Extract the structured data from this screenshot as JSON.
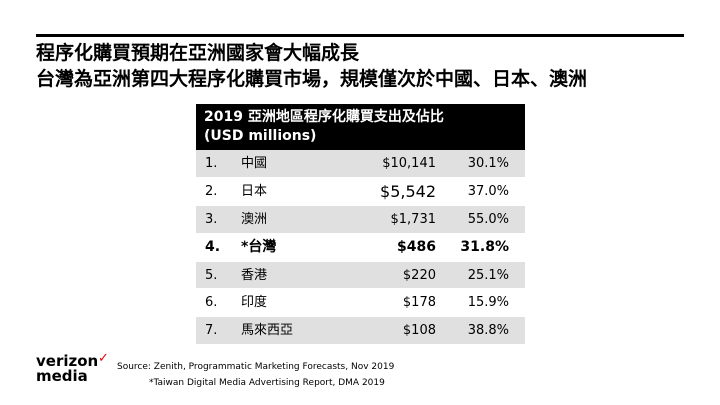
{
  "header": {
    "title": "程序化購買預期在亞洲國家會大幅成長",
    "subtitle": "台灣為亞洲第四大程序化購買市場，規模僅次於中國、日本、澳洲"
  },
  "chart_data": {
    "type": "table",
    "title_line1": "2019 亞洲地區程序化購買支出及佔比",
    "title_line2": "(USD millions)",
    "rows": [
      {
        "rank": "1.",
        "name": "中國",
        "value": "$10,141",
        "pct": "30.1%"
      },
      {
        "rank": "2.",
        "name": "日本",
        "value": "$5,542",
        "pct": "37.0%"
      },
      {
        "rank": "3.",
        "name": "澳洲",
        "value": "$1,731",
        "pct": "55.0%"
      },
      {
        "rank": "4.",
        "name": "*台灣",
        "value": "$486",
        "pct": "31.8%"
      },
      {
        "rank": "5.",
        "name": "香港",
        "value": "$220",
        "pct": "25.1%"
      },
      {
        "rank": "6.",
        "name": "印度",
        "value": "$178",
        "pct": "15.9%"
      },
      {
        "rank": "7.",
        "name": "馬來西亞",
        "value": "$108",
        "pct": "38.8%"
      }
    ]
  },
  "footer": {
    "logo_line1": "verizon",
    "logo_check": "✓",
    "logo_line2": "media",
    "source": "Source:  Zenith, Programmatic Marketing Forecasts, Nov 2019",
    "note": "*Taiwan Digital Media Advertising Report, DMA 2019"
  },
  "colors": {
    "header_bg": "#000000",
    "shade": "#e0e0e0",
    "check": "#e60000"
  }
}
